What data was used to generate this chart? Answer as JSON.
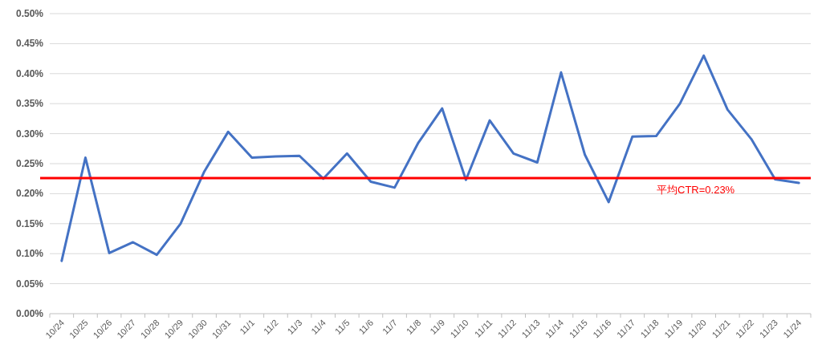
{
  "chart_data": {
    "type": "line",
    "categories": [
      "10/24",
      "10/25",
      "10/26",
      "10/27",
      "10/28",
      "10/29",
      "10/30",
      "10/31",
      "11/1",
      "11/2",
      "11/3",
      "11/4",
      "11/5",
      "11/6",
      "11/7",
      "11/8",
      "11/9",
      "11/10",
      "11/11",
      "11/12",
      "11/13",
      "11/14",
      "11/15",
      "11/16",
      "11/17",
      "11/18",
      "11/19",
      "11/20",
      "11/21",
      "11/22",
      "11/23",
      "11/24"
    ],
    "series": [
      {
        "color": "#4472c4",
        "values": [
          0.088,
          0.26,
          0.101,
          0.119,
          0.098,
          0.15,
          0.237,
          0.303,
          0.26,
          0.262,
          0.263,
          0.225,
          0.267,
          0.22,
          0.21,
          0.285,
          0.342,
          0.223,
          0.322,
          0.267,
          0.252,
          0.402,
          0.265,
          0.186,
          0.295,
          0.296,
          0.35,
          0.43,
          0.34,
          0.291,
          0.224,
          0.218
        ]
      }
    ],
    "ylim": [
      0,
      0.5
    ],
    "yticks": [
      {
        "value": 0,
        "label": "0.00%"
      },
      {
        "value": 0.05,
        "label": "0.05%"
      },
      {
        "value": 0.1,
        "label": "0.10%"
      },
      {
        "value": 0.15,
        "label": "0.15%"
      },
      {
        "value": 0.2,
        "label": "0.20%"
      },
      {
        "value": 0.25,
        "label": "0.25%"
      },
      {
        "value": 0.3,
        "label": "0.30%"
      },
      {
        "value": 0.35,
        "label": "0.35%"
      },
      {
        "value": 0.4,
        "label": "0.40%"
      },
      {
        "value": 0.45,
        "label": "0.45%"
      },
      {
        "value": 0.5,
        "label": "0.50%"
      }
    ],
    "grid": "y",
    "marker": "none",
    "line_style": "solid",
    "ref_lines": [
      {
        "axis": "y",
        "value": 0.226,
        "label": "平均CTR=0.23%",
        "color": "#ff0000",
        "line_style": "solid"
      }
    ]
  }
}
